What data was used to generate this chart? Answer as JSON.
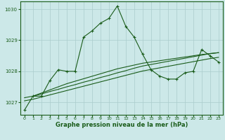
{
  "bg_color": "#cce8e8",
  "grid_color": "#aacccc",
  "line_color": "#1a5c1a",
  "xlabel": "Graphe pression niveau de la mer (hPa)",
  "xlim": [
    -0.5,
    23.5
  ],
  "ylim": [
    1026.6,
    1030.25
  ],
  "yticks": [
    1027,
    1028,
    1029,
    1030
  ],
  "xticks": [
    0,
    1,
    2,
    3,
    4,
    5,
    6,
    7,
    8,
    9,
    10,
    11,
    12,
    13,
    14,
    15,
    16,
    17,
    18,
    19,
    20,
    21,
    22,
    23
  ],
  "series1_x": [
    0,
    1,
    2,
    3,
    4,
    5,
    6,
    7,
    8,
    9,
    10,
    11,
    12,
    13,
    14,
    15,
    16,
    17,
    18,
    19,
    20,
    21,
    22,
    23
  ],
  "series1_y": [
    1026.75,
    1027.2,
    1027.2,
    1027.7,
    1028.05,
    1028.0,
    1028.0,
    1029.1,
    1029.3,
    1029.55,
    1029.7,
    1030.1,
    1029.45,
    1029.1,
    1028.55,
    1028.05,
    1027.85,
    1027.75,
    1027.75,
    1027.95,
    1028.0,
    1028.7,
    1028.5,
    1028.3
  ],
  "series2_x": [
    0,
    1,
    2,
    3,
    4,
    5,
    6,
    7,
    8,
    9,
    10,
    11,
    12,
    13,
    14,
    15,
    16,
    17,
    18,
    19,
    20,
    21,
    22,
    23
  ],
  "series2_y": [
    1027.15,
    1027.2,
    1027.27,
    1027.35,
    1027.42,
    1027.5,
    1027.57,
    1027.65,
    1027.72,
    1027.8,
    1027.87,
    1027.95,
    1028.02,
    1028.1,
    1028.17,
    1028.22,
    1028.27,
    1028.32,
    1028.37,
    1028.42,
    1028.47,
    1028.52,
    1028.57,
    1028.6
  ],
  "series3_x": [
    0,
    1,
    2,
    3,
    4,
    5,
    6,
    7,
    8,
    9,
    10,
    11,
    12,
    13,
    14,
    15,
    16,
    17,
    18,
    19,
    20,
    21,
    22,
    23
  ],
  "series3_y": [
    1027.05,
    1027.1,
    1027.17,
    1027.24,
    1027.31,
    1027.38,
    1027.45,
    1027.52,
    1027.59,
    1027.66,
    1027.73,
    1027.8,
    1027.87,
    1027.94,
    1028.01,
    1028.06,
    1028.11,
    1028.16,
    1028.21,
    1028.26,
    1028.31,
    1028.36,
    1028.41,
    1028.45
  ],
  "series4_x": [
    1,
    2,
    3,
    4,
    5,
    6,
    7,
    8,
    9,
    10,
    11,
    12,
    13,
    14,
    15,
    16,
    17,
    18,
    19,
    20,
    21,
    22,
    23
  ],
  "series4_y": [
    1027.2,
    1027.3,
    1027.4,
    1027.5,
    1027.6,
    1027.68,
    1027.76,
    1027.84,
    1027.92,
    1028.0,
    1028.08,
    1028.14,
    1028.2,
    1028.26,
    1028.3,
    1028.34,
    1028.38,
    1028.42,
    1028.46,
    1028.5,
    1028.54,
    1028.57,
    1028.6
  ]
}
